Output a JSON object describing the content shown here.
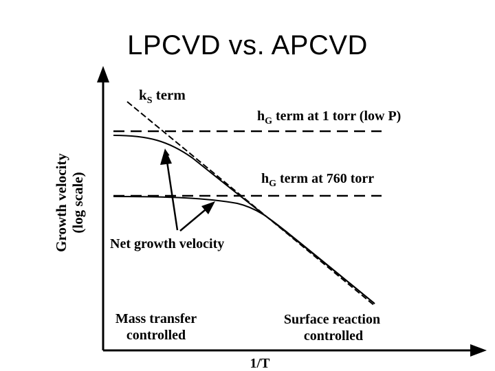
{
  "title": "LPCVD vs. APCVD",
  "diagram": {
    "y_axis_label_line1": "Growth velocity",
    "y_axis_label_line2": "(log scale)",
    "x_axis_label": "1/T",
    "ks_label": {
      "main": "k",
      "subscript": "S",
      "rest": " term"
    },
    "hg_low_label": {
      "main": "h",
      "subscript": "G",
      "rest": " term at 1 torr (low P)"
    },
    "hg_atm_label": {
      "main": "h",
      "subscript": "G",
      "rest": " term at 760 torr"
    },
    "net_growth_label": "Net growth velocity",
    "mass_transfer_line1": "Mass transfer",
    "mass_transfer_line2": "controlled",
    "surface_reaction_line1": "Surface reaction",
    "surface_reaction_line2": "controlled"
  }
}
